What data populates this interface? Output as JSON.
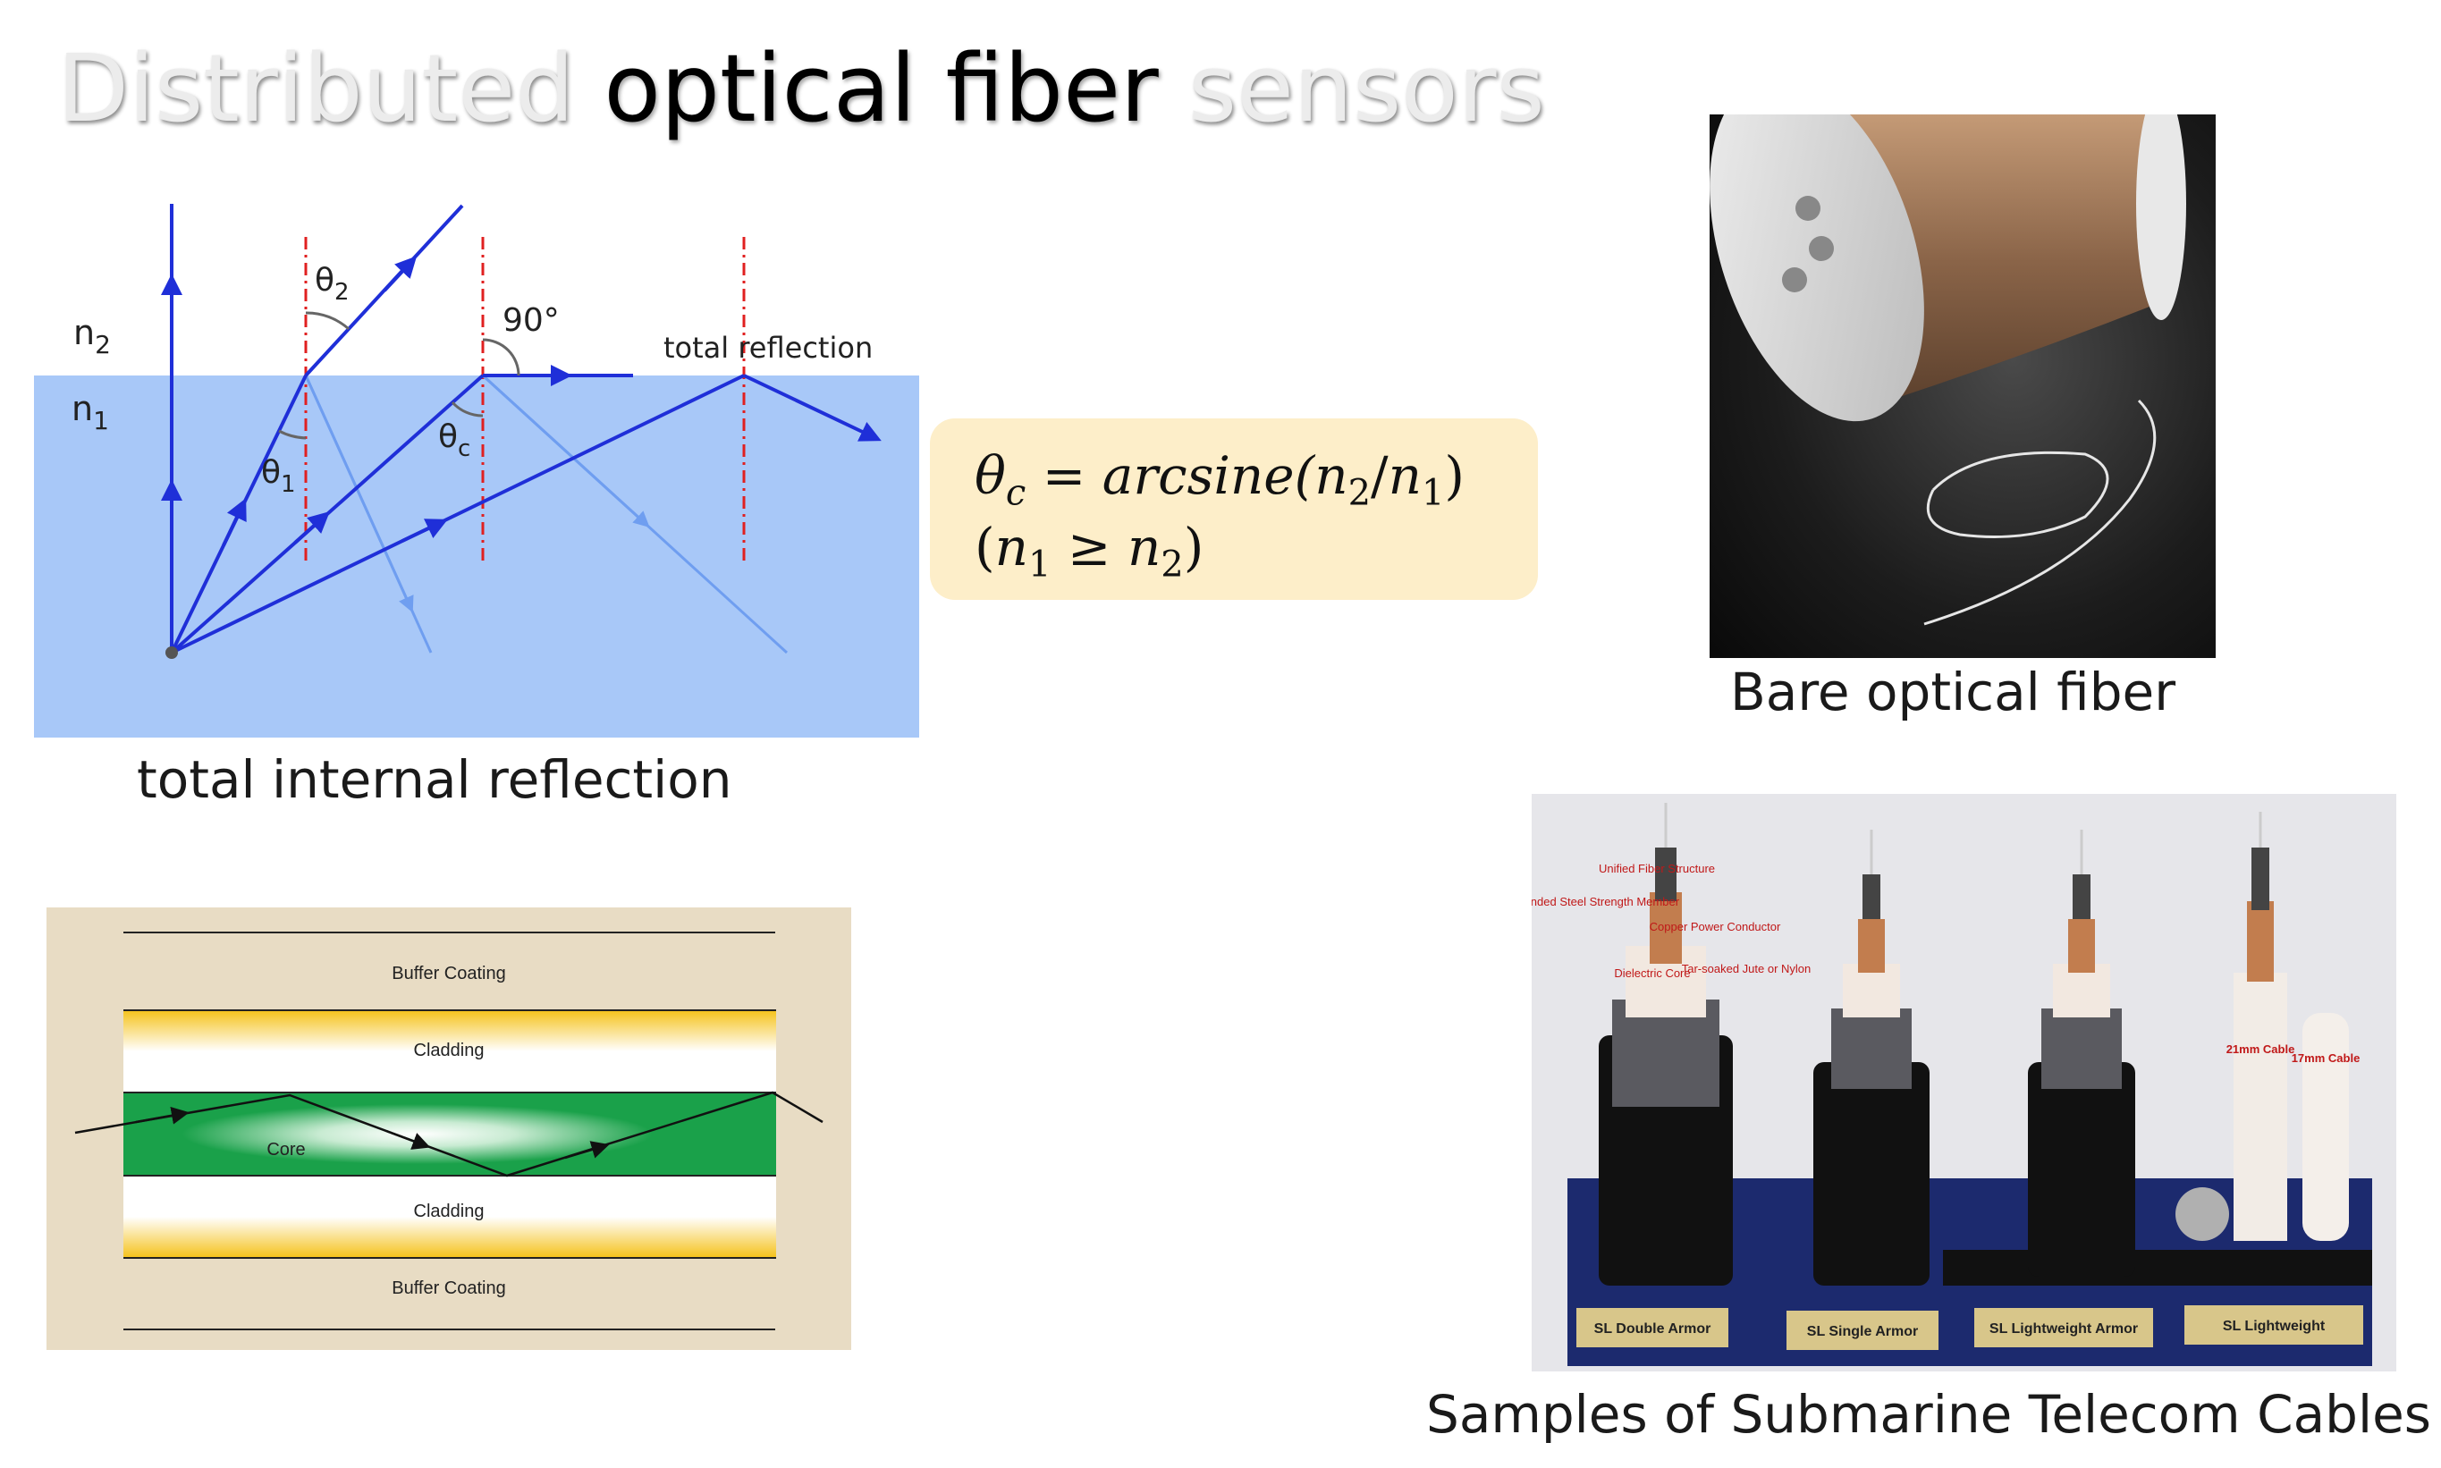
{
  "title": {
    "part1": "Distributed",
    "part2": "optical fiber",
    "part3": "sensors"
  },
  "tir_diagram": {
    "label_n2": "n",
    "label_n2_sub": "2",
    "label_n1": "n",
    "label_n1_sub": "1",
    "label_theta2": "θ",
    "label_theta2_sub": "2",
    "label_theta1": "θ",
    "label_theta1_sub": "1",
    "label_thetac": "θ",
    "label_thetac_sub": "c",
    "label_90": "90°",
    "label_total_reflection": "total reflection",
    "caption": "total internal reflection"
  },
  "formula": {
    "line1_theta": "θ",
    "line1_c": "c",
    "line1_eq": " = arcsine(",
    "line1_n2": "n",
    "line1_n2_sub": "2",
    "line1_slash": "/",
    "line1_n1": "n",
    "line1_n1_sub": "1",
    "line1_close": ")",
    "line2_open": "(",
    "line2_n1": "n",
    "line2_n1_sub": "1",
    "line2_geq": " ≥ ",
    "line2_n2": "n",
    "line2_n2_sub": "2",
    "line2_close": ")"
  },
  "fiber_diagram": {
    "buffer_top": "Buffer Coating",
    "cladding_top": "Cladding",
    "core": "Core",
    "cladding_bottom": "Cladding",
    "buffer_bottom": "Buffer Coating"
  },
  "spool_photo": {
    "caption": "Bare optical fiber"
  },
  "cables_photo": {
    "caption": "Samples of Submarine Telecom Cables",
    "annotations": [
      "Unified Fiber Structure",
      "Stranded Steel Strength Member",
      "Copper Power Conductor",
      "Dielectric Core",
      "Tar-soaked Jute or Nylon",
      "21mm Cable",
      "17mm Cable"
    ],
    "labels": [
      "SL Double Armor",
      "SL Single Armor",
      "SL Lightweight Armor",
      "SL Lightweight"
    ]
  },
  "colors": {
    "water": "#a8c8f8",
    "ray": "#1f2fd8",
    "ray_faint": "#6f9ef0",
    "normal": "#e02020",
    "formula_bg": "#fdeec9",
    "fiber_bg": "#e8dcc4",
    "core": "#1aa14a",
    "cladding": "#f5c21a"
  }
}
